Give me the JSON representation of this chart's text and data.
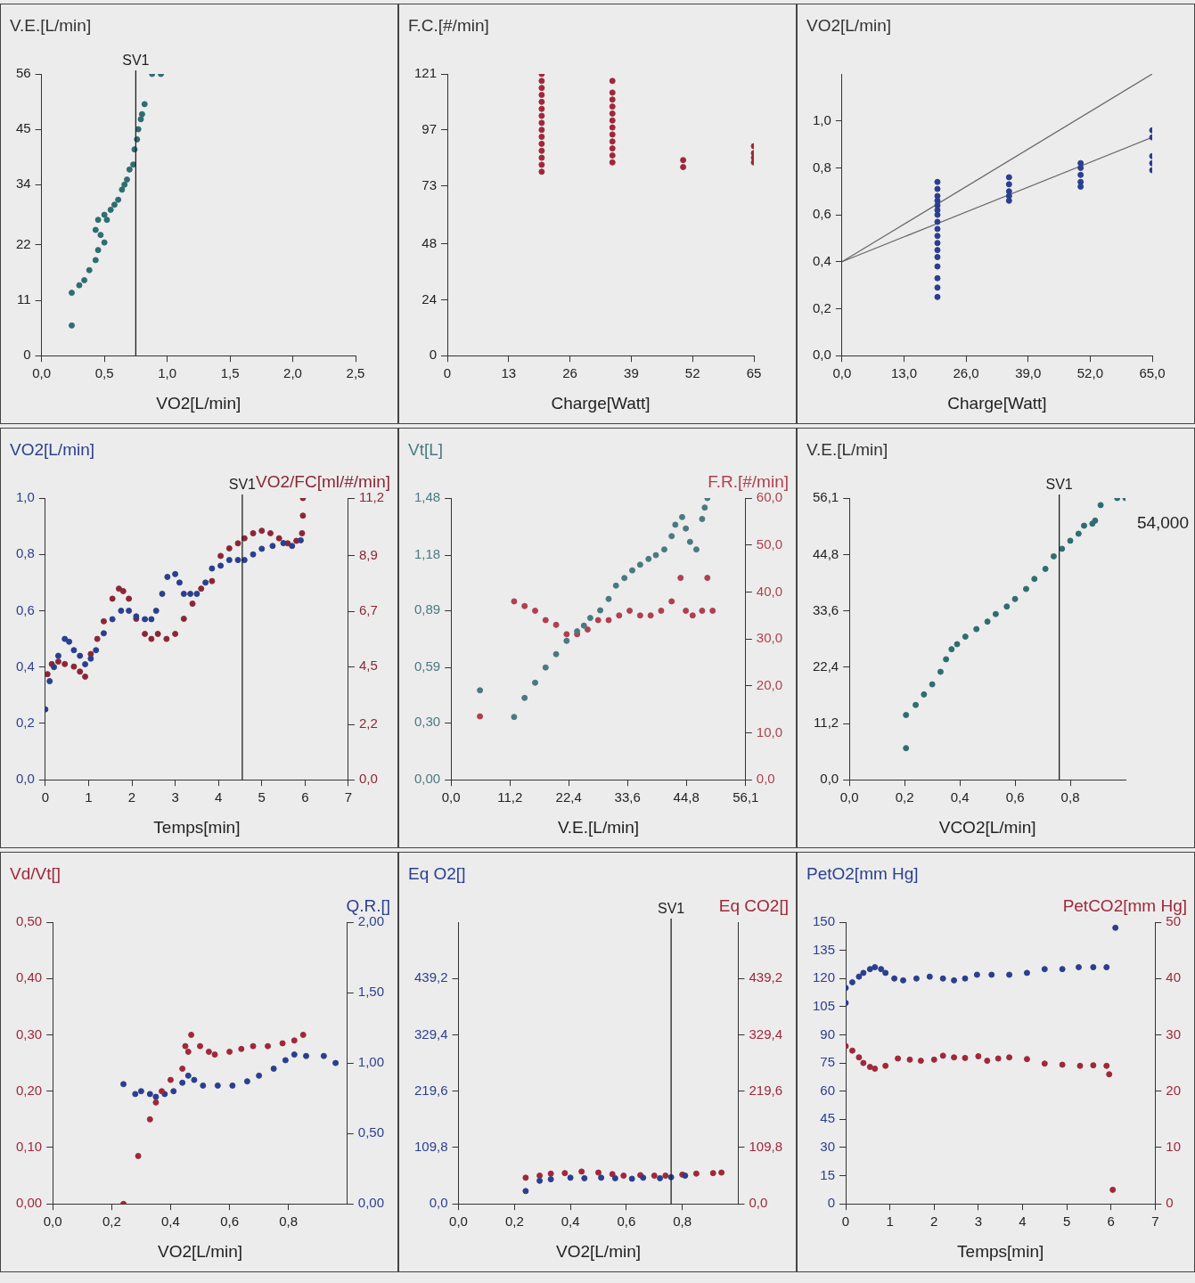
{
  "chart_data": [
    {
      "type": "scatter",
      "ylabel": "V.E.[L/min]",
      "xlabel": "VO2[L/min]",
      "marker": "circle",
      "xlim": [
        0,
        2.5
      ],
      "xticks": [
        {
          "value": 0,
          "label": "0,0"
        },
        {
          "value": 0.5,
          "label": "0,5"
        },
        {
          "value": 1,
          "label": "1,0"
        },
        {
          "value": 1.5,
          "label": "1,5"
        },
        {
          "value": 2,
          "label": "2,0"
        },
        {
          "value": 2.5,
          "label": "2,5"
        }
      ],
      "ylim": [
        0,
        56
      ],
      "yticks": [
        0,
        11,
        22,
        34,
        45,
        56
      ],
      "ref_lines": [
        {
          "axis": "x",
          "value": 0.75,
          "label": "SV1"
        }
      ],
      "series": [
        {
          "color": "#2f6e70",
          "x": [
            0.24,
            0.24,
            0.3,
            0.34,
            0.38,
            0.43,
            0.45,
            0.47,
            0.43,
            0.45,
            0.5,
            0.52,
            0.5,
            0.55,
            0.58,
            0.61,
            0.64,
            0.66,
            0.68,
            0.7,
            0.73,
            0.74,
            0.76,
            0.77,
            0.79,
            0.8,
            0.82,
            0.88,
            0.95
          ],
          "values": [
            6,
            12.5,
            14,
            15,
            17,
            19,
            21,
            24,
            25,
            27,
            28,
            27,
            22.5,
            29,
            30,
            31,
            33,
            34,
            35,
            37,
            38,
            41,
            43,
            45,
            47,
            48,
            50,
            56,
            56
          ]
        }
      ]
    },
    {
      "type": "scatter",
      "ylabel": "F.C.[#/min]",
      "xlabel": "Charge[Watt]",
      "marker": "circle",
      "xlim": [
        0,
        65
      ],
      "xticks": [
        0,
        13,
        26,
        39,
        52,
        65
      ],
      "ylim": [
        0,
        121
      ],
      "yticks": [
        0,
        24,
        48,
        73,
        97,
        121
      ],
      "series": [
        {
          "color": "#a0283a",
          "x": [
            20,
            20,
            20,
            20,
            20,
            20,
            20,
            20,
            20,
            20,
            20,
            20,
            20,
            20,
            20,
            35,
            35,
            35,
            35,
            35,
            35,
            35,
            35,
            35,
            35,
            35,
            35,
            50,
            50,
            65,
            65,
            65,
            65
          ],
          "values": [
            79,
            82,
            85,
            88,
            91,
            94,
            97,
            100,
            103,
            106,
            109,
            112,
            115,
            118,
            121,
            83,
            86,
            89,
            92,
            95,
            98,
            101,
            104,
            107,
            110,
            113,
            118,
            81,
            84,
            83,
            85,
            87,
            90
          ]
        }
      ]
    },
    {
      "type": "scatter",
      "ylabel": "VO2[L/min]",
      "xlabel": "Charge[Watt]",
      "marker": "circle",
      "xlim": [
        0,
        65
      ],
      "xticks": [
        {
          "value": 0,
          "label": "0,0"
        },
        {
          "value": 13,
          "label": "13,0"
        },
        {
          "value": 26,
          "label": "26,0"
        },
        {
          "value": 39,
          "label": "39,0"
        },
        {
          "value": 52,
          "label": "52,0"
        },
        {
          "value": 65,
          "label": "65,0"
        }
      ],
      "ylim": [
        0,
        1.2
      ],
      "yticks": [
        {
          "value": 0,
          "label": "0,0"
        },
        {
          "value": 0.2,
          "label": "0,2"
        },
        {
          "value": 0.4,
          "label": "0,4"
        },
        {
          "value": 0.6,
          "label": "0,6"
        },
        {
          "value": 0.8,
          "label": "0,8"
        },
        {
          "value": 1,
          "label": "1,0"
        }
      ],
      "series": [
        {
          "color": "#2b3f8f",
          "x": [
            20,
            20,
            20,
            20,
            20,
            20,
            20,
            20,
            20,
            20,
            20,
            20,
            20,
            20,
            20,
            20,
            20,
            35,
            35,
            35,
            35,
            35,
            50,
            50,
            50,
            50,
            50,
            65,
            65,
            65,
            65,
            65
          ],
          "values": [
            0.25,
            0.29,
            0.33,
            0.38,
            0.42,
            0.45,
            0.48,
            0.51,
            0.54,
            0.57,
            0.6,
            0.62,
            0.64,
            0.66,
            0.68,
            0.71,
            0.74,
            0.66,
            0.68,
            0.7,
            0.73,
            0.76,
            0.72,
            0.74,
            0.77,
            0.8,
            0.82,
            0.79,
            0.82,
            0.85,
            0.93,
            0.96
          ]
        },
        {
          "type": "line",
          "marker": "none",
          "color": "#666666",
          "x": [
            0,
            65
          ],
          "values": [
            0.4,
            1.2
          ]
        },
        {
          "type": "line",
          "marker": "none",
          "color": "#666666",
          "x": [
            0,
            65
          ],
          "values": [
            0.4,
            0.93
          ]
        }
      ]
    },
    {
      "type": "scatter",
      "ylabel": "VO2[L/min]",
      "y2label": "VO2/FC[ml/#/min]",
      "xlabel": "Temps[min]",
      "marker": "circle",
      "xlim": [
        0,
        7
      ],
      "xticks": [
        0,
        1,
        2,
        3,
        4,
        5,
        6,
        7
      ],
      "ylim": [
        0,
        1
      ],
      "yticks": [
        {
          "value": 0,
          "label": "0,0"
        },
        {
          "value": 0.2,
          "label": "0,2"
        },
        {
          "value": 0.4,
          "label": "0,4"
        },
        {
          "value": 0.6,
          "label": "0,6"
        },
        {
          "value": 0.8,
          "label": "0,8"
        },
        {
          "value": 1,
          "label": "1,0"
        }
      ],
      "y2lim": [
        0,
        11.2
      ],
      "y2ticks": [
        {
          "value": 0,
          "label": "0,0"
        },
        {
          "value": 2.2,
          "label": "2,2"
        },
        {
          "value": 4.5,
          "label": "4,5"
        },
        {
          "value": 6.7,
          "label": "6,7"
        },
        {
          "value": 8.9,
          "label": "8,9"
        },
        {
          "value": 11.2,
          "label": "11,2"
        }
      ],
      "ref_lines": [
        {
          "axis": "x",
          "value": 4.55,
          "label": "SV1"
        }
      ],
      "series": [
        {
          "color": "#2b3f8f",
          "x": [
            0,
            0.1,
            0.2,
            0.3,
            0.45,
            0.55,
            0.66,
            0.8,
            0.92,
            1.05,
            1.17,
            1.35,
            1.55,
            1.75,
            1.93,
            2.1,
            2.3,
            2.45,
            2.56,
            2.7,
            2.82,
            3,
            3.1,
            3.2,
            3.35,
            3.5,
            3.7,
            3.85,
            4.05,
            4.25,
            4.45,
            4.6,
            4.8,
            5,
            5.25,
            5.5,
            5.7,
            5.9
          ],
          "values": [
            0.25,
            0.35,
            0.4,
            0.44,
            0.5,
            0.49,
            0.46,
            0.44,
            0.41,
            0.43,
            0.46,
            0.52,
            0.57,
            0.6,
            0.6,
            0.58,
            0.57,
            0.57,
            0.6,
            0.66,
            0.72,
            0.73,
            0.7,
            0.66,
            0.66,
            0.66,
            0.7,
            0.75,
            0.76,
            0.78,
            0.78,
            0.78,
            0.8,
            0.82,
            0.83,
            0.84,
            0.83,
            0.85
          ]
        },
        {
          "axis": "y2",
          "color": "#8c2636",
          "x": [
            0.05,
            0.15,
            0.3,
            0.45,
            0.66,
            0.8,
            0.92,
            1.05,
            1.2,
            1.35,
            1.55,
            1.7,
            1.8,
            1.93,
            2.1,
            2.3,
            2.45,
            2.6,
            2.8,
            3,
            3.2,
            3.4,
            3.6,
            3.85,
            4.05,
            4.25,
            4.45,
            4.6,
            4.8,
            5,
            5.2,
            5.4,
            5.6,
            5.8,
            5.93,
            5.95,
            5.95
          ],
          "values": [
            4.2,
            4.6,
            4.7,
            4.6,
            4.5,
            4.3,
            4.1,
            5,
            5.6,
            6.3,
            7.2,
            7.6,
            7.5,
            7.2,
            6.4,
            5.8,
            5.6,
            5.8,
            5.6,
            5.8,
            6.4,
            7,
            7.6,
            7.9,
            8.9,
            9.2,
            9.4,
            9.6,
            9.8,
            9.9,
            9.8,
            9.6,
            9.4,
            9.5,
            9.8,
            10.5,
            11.2
          ]
        }
      ]
    },
    {
      "type": "scatter",
      "ylabel": "Vt[L]",
      "y2label": "F.R.[#/min]",
      "xlabel": "V.E.[L/min]",
      "marker": "circle",
      "xlim": [
        0,
        56.1
      ],
      "xticks": [
        {
          "value": 0,
          "label": "0,0"
        },
        {
          "value": 11.2,
          "label": "11,2"
        },
        {
          "value": 22.4,
          "label": "22,4"
        },
        {
          "value": 33.6,
          "label": "33,6"
        },
        {
          "value": 44.8,
          "label": "44,8"
        },
        {
          "value": 56.1,
          "label": "56,1"
        }
      ],
      "ylim": [
        0,
        1.48
      ],
      "yticks": [
        {
          "value": 0,
          "label": "0,00"
        },
        {
          "value": 0.3,
          "label": "0,30"
        },
        {
          "value": 0.59,
          "label": "0,59"
        },
        {
          "value": 0.89,
          "label": "0,89"
        },
        {
          "value": 1.18,
          "label": "1,18"
        },
        {
          "value": 1.48,
          "label": "1,48"
        }
      ],
      "y2lim": [
        0,
        60
      ],
      "y2ticks": [
        {
          "value": 0,
          "label": "0,0"
        },
        {
          "value": 10,
          "label": "10,0"
        },
        {
          "value": 20,
          "label": "20,0"
        },
        {
          "value": 30,
          "label": "30,0"
        },
        {
          "value": 40,
          "label": "40,0"
        },
        {
          "value": 50,
          "label": "50,0"
        },
        {
          "value": 60,
          "label": "60,0"
        }
      ],
      "series": [
        {
          "color": "#4a7a80",
          "x": [
            5.5,
            12,
            14,
            16,
            18,
            20,
            22,
            24,
            25.3,
            26.5,
            28.4,
            30,
            31.4,
            33,
            34.5,
            36,
            37.6,
            39,
            40.6,
            42,
            42.7,
            44,
            44.7,
            45.5,
            46.7,
            47.8,
            48.3,
            48.8
          ],
          "values": [
            0.47,
            0.33,
            0.43,
            0.51,
            0.59,
            0.66,
            0.73,
            0.78,
            0.81,
            0.85,
            0.89,
            0.95,
            1.02,
            1.06,
            1.1,
            1.13,
            1.16,
            1.18,
            1.21,
            1.28,
            1.34,
            1.38,
            1.32,
            1.25,
            1.21,
            1.37,
            1.43,
            1.48
          ]
        },
        {
          "axis": "y2",
          "color": "#b0404f",
          "x": [
            5.5,
            12,
            14,
            16,
            18,
            20,
            22,
            24,
            26,
            28,
            30,
            32,
            34,
            36,
            38,
            40,
            42,
            43.7,
            44.7,
            46,
            47.8,
            48.8,
            49.8
          ],
          "values": [
            13.5,
            38,
            37,
            36,
            34,
            33,
            31,
            31,
            32,
            34,
            34,
            35,
            36,
            35,
            35,
            36,
            38,
            43,
            36,
            35,
            36,
            43,
            36
          ]
        }
      ]
    },
    {
      "type": "scatter",
      "ylabel": "V.E.[L/min]",
      "xlabel": "VCO2[L/min]",
      "marker": "circle",
      "xlim": [
        0,
        1
      ],
      "xticks": [
        {
          "value": 0,
          "label": "0,0"
        },
        {
          "value": 0.2,
          "label": "0,2"
        },
        {
          "value": 0.4,
          "label": "0,4"
        },
        {
          "value": 0.6,
          "label": "0,6"
        },
        {
          "value": 0.8,
          "label": "0,8"
        }
      ],
      "ylim": [
        0,
        56.1
      ],
      "yticks": [
        {
          "value": 0,
          "label": "0,0"
        },
        {
          "value": 11.2,
          "label": "11,2"
        },
        {
          "value": 22.4,
          "label": "22,4"
        },
        {
          "value": 33.6,
          "label": "33,6"
        },
        {
          "value": 44.8,
          "label": "44,8"
        },
        {
          "value": 56.1,
          "label": "56,1"
        }
      ],
      "ref_lines": [
        {
          "axis": "x",
          "value": 0.76,
          "label": "SV1"
        }
      ],
      "annotations": [
        "54,000"
      ],
      "series": [
        {
          "color": "#2f6e70",
          "x": [
            0.205,
            0.205,
            0.24,
            0.27,
            0.3,
            0.33,
            0.35,
            0.37,
            0.39,
            0.42,
            0.46,
            0.5,
            0.53,
            0.57,
            0.6,
            0.64,
            0.67,
            0.71,
            0.74,
            0.77,
            0.8,
            0.83,
            0.85,
            0.88,
            0.89,
            0.91,
            0.97,
            1
          ],
          "values": [
            6.3,
            12.9,
            14.9,
            17,
            19,
            21.5,
            24,
            26,
            27,
            28.5,
            30,
            31.5,
            33,
            34.5,
            36,
            38,
            40,
            42,
            44.5,
            46,
            47.6,
            49,
            50.6,
            51,
            51.6,
            54.7,
            56.1,
            56.1
          ]
        }
      ]
    },
    {
      "type": "scatter",
      "ylabel": "Vd/Vt[]",
      "y2label": "Q.R.[]",
      "xlabel": "VO2[L/min]",
      "marker": "circle",
      "xlim": [
        0,
        1
      ],
      "xticks": [
        {
          "value": 0,
          "label": "0,0"
        },
        {
          "value": 0.2,
          "label": "0,2"
        },
        {
          "value": 0.4,
          "label": "0,4"
        },
        {
          "value": 0.6,
          "label": "0,6"
        },
        {
          "value": 0.8,
          "label": "0,8"
        }
      ],
      "ylim": [
        0,
        0.5
      ],
      "yticks": [
        {
          "value": 0,
          "label": "0,00"
        },
        {
          "value": 0.1,
          "label": "0,10"
        },
        {
          "value": 0.2,
          "label": "0,20"
        },
        {
          "value": 0.3,
          "label": "0,30"
        },
        {
          "value": 0.4,
          "label": "0,40"
        },
        {
          "value": 0.5,
          "label": "0,50"
        }
      ],
      "y2lim": [
        0,
        2
      ],
      "y2ticks": [
        {
          "value": 0,
          "label": "0,00"
        },
        {
          "value": 0.5,
          "label": "0,50"
        },
        {
          "value": 1,
          "label": "1,00"
        },
        {
          "value": 1.5,
          "label": "1,50"
        },
        {
          "value": 2,
          "label": "2,00"
        }
      ],
      "series": [
        {
          "color": "#a0283a",
          "x": [
            0.24,
            0.29,
            0.33,
            0.35,
            0.37,
            0.4,
            0.44,
            0.45,
            0.47,
            0.46,
            0.5,
            0.53,
            0.55,
            0.6,
            0.64,
            0.68,
            0.73,
            0.78,
            0.82,
            0.85
          ],
          "values": [
            0,
            0.085,
            0.15,
            0.18,
            0.2,
            0.22,
            0.24,
            0.28,
            0.3,
            0.27,
            0.28,
            0.27,
            0.265,
            0.27,
            0.275,
            0.28,
            0.28,
            0.285,
            0.29,
            0.3
          ]
        },
        {
          "axis": "y2",
          "color": "#2b3f8f",
          "x": [
            0.24,
            0.28,
            0.3,
            0.33,
            0.35,
            0.38,
            0.41,
            0.44,
            0.46,
            0.48,
            0.51,
            0.56,
            0.61,
            0.66,
            0.7,
            0.75,
            0.79,
            0.82,
            0.86,
            0.92,
            0.96
          ],
          "values": [
            0.85,
            0.78,
            0.8,
            0.78,
            0.76,
            0.78,
            0.8,
            0.86,
            0.91,
            0.88,
            0.84,
            0.84,
            0.84,
            0.87,
            0.91,
            0.96,
            1.02,
            1.06,
            1.05,
            1.05,
            1
          ]
        }
      ]
    },
    {
      "type": "scatter",
      "ylabel": "Eq O2[]",
      "y2label": "Eq CO2[]",
      "xlabel": "VO2[L/min]",
      "marker": "circle",
      "xlim": [
        0,
        1
      ],
      "xticks": [
        {
          "value": 0,
          "label": "0,0"
        },
        {
          "value": 0.2,
          "label": "0,2"
        },
        {
          "value": 0.4,
          "label": "0,4"
        },
        {
          "value": 0.6,
          "label": "0,6"
        },
        {
          "value": 0.8,
          "label": "0,8"
        }
      ],
      "ylim": [
        0,
        549
      ],
      "yticks": [
        {
          "value": 0,
          "label": "0,0"
        },
        {
          "value": 109.8,
          "label": "109,8"
        },
        {
          "value": 219.6,
          "label": "219,6"
        },
        {
          "value": 329.4,
          "label": "329,4"
        },
        {
          "value": 439.2,
          "label": "439,2"
        }
      ],
      "y2lim": [
        0,
        549
      ],
      "y2ticks": [
        {
          "value": 0,
          "label": "0,0"
        },
        {
          "value": 109.8,
          "label": "109,8"
        },
        {
          "value": 219.6,
          "label": "219,6"
        },
        {
          "value": 329.4,
          "label": "329,4"
        },
        {
          "value": 439.2,
          "label": "439,2"
        }
      ],
      "ref_lines": [
        {
          "axis": "x",
          "value": 0.76,
          "label": "SV1"
        }
      ],
      "series": [
        {
          "color": "#2b3f8f",
          "x": [
            0.24,
            0.29,
            0.33,
            0.4,
            0.45,
            0.51,
            0.56,
            0.62,
            0.66,
            0.72,
            0.76,
            0.81
          ],
          "values": [
            25,
            45,
            48,
            51,
            50,
            51,
            50,
            49,
            51,
            50,
            52,
            55
          ]
        },
        {
          "axis": "y2",
          "color": "#a0283a",
          "x": [
            0.24,
            0.29,
            0.33,
            0.38,
            0.44,
            0.5,
            0.55,
            0.59,
            0.65,
            0.7,
            0.74,
            0.8,
            0.85,
            0.91,
            0.94
          ],
          "values": [
            51,
            55,
            59,
            60,
            63,
            61,
            58,
            55,
            56,
            55,
            55,
            57,
            59,
            60,
            61
          ]
        }
      ]
    },
    {
      "type": "scatter",
      "ylabel": "PetO2[mm Hg]",
      "y2label": "PetCO2[mm Hg]",
      "xlabel": "Temps[min]",
      "marker": "circle",
      "xlim": [
        0,
        7
      ],
      "xticks": [
        0,
        1,
        2,
        3,
        4,
        5,
        6,
        7
      ],
      "ylim": [
        0,
        150
      ],
      "yticks": [
        0,
        15,
        30,
        45,
        60,
        75,
        90,
        105,
        120,
        135,
        150
      ],
      "y2lim": [
        0,
        50
      ],
      "y2ticks": [
        0,
        10,
        20,
        30,
        40,
        50
      ],
      "series": [
        {
          "color": "#2b3f8f",
          "x": [
            0,
            0,
            0.15,
            0.3,
            0.4,
            0.55,
            0.66,
            0.8,
            0.9,
            1.1,
            1.3,
            1.6,
            1.9,
            2.2,
            2.45,
            2.7,
            2.97,
            3.3,
            3.7,
            4.1,
            4.5,
            4.9,
            5.27,
            5.6,
            5.9,
            6.1
          ],
          "values": [
            107,
            115,
            118,
            121,
            123,
            125,
            126,
            125,
            123,
            120,
            119,
            120,
            121,
            120,
            119,
            120,
            122,
            122,
            122,
            123,
            125,
            125,
            126,
            126,
            126,
            147
          ]
        },
        {
          "axis": "y2",
          "color": "#a0283a",
          "x": [
            0,
            0.15,
            0.3,
            0.4,
            0.55,
            0.66,
            0.9,
            1.18,
            1.45,
            1.7,
            2,
            2.2,
            2.45,
            2.7,
            3,
            3.2,
            3.45,
            3.7,
            4.1,
            4.5,
            4.9,
            5.3,
            5.6,
            5.9,
            5.96,
            6.04
          ],
          "values": [
            28,
            27.2,
            26,
            25,
            24.3,
            24,
            24.5,
            25.8,
            25.6,
            25.4,
            25.6,
            26.3,
            26,
            25.9,
            26.2,
            25.4,
            25.8,
            26,
            25.7,
            24.9,
            24.7,
            24.5,
            24.6,
            24.5,
            23,
            2.5
          ]
        }
      ]
    }
  ]
}
